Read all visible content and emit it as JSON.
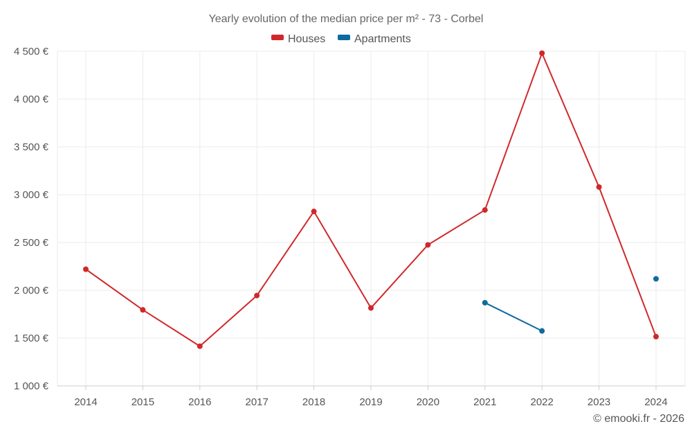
{
  "chart_data": {
    "type": "line",
    "title": "Yearly evolution of the median price per m² - 73 - Corbel",
    "categories": [
      "2014",
      "2015",
      "2016",
      "2017",
      "2018",
      "2019",
      "2020",
      "2021",
      "2022",
      "2023",
      "2024"
    ],
    "y_ticks": [
      "1 000 €",
      "1 500 €",
      "2 000 €",
      "2 500 €",
      "3 000 €",
      "3 500 €",
      "4 000 €",
      "4 500 €"
    ],
    "ylim": [
      1000,
      4500
    ],
    "grid": true,
    "legend_position": "top-center",
    "series": [
      {
        "name": "Houses",
        "color": "#d0282a",
        "values": [
          2220,
          1795,
          1415,
          1945,
          2825,
          1815,
          2475,
          2840,
          4480,
          3080,
          1515
        ]
      },
      {
        "name": "Apartments",
        "color": "#0d6b9e",
        "values": [
          null,
          null,
          null,
          null,
          null,
          null,
          null,
          1870,
          1575,
          null,
          2120
        ]
      }
    ],
    "credit": "© emooki.fr - 2026"
  }
}
